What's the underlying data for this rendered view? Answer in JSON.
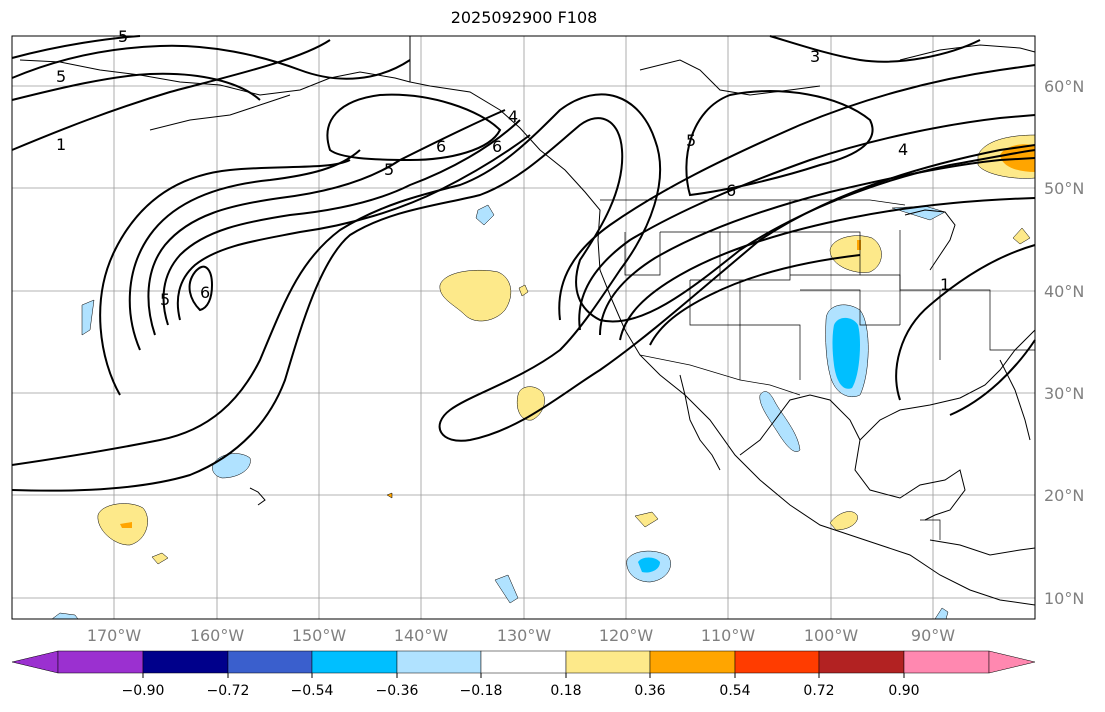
{
  "title": "2025092900 F108",
  "map": {
    "lat_labels": [
      "60°N",
      "50°N",
      "40°N",
      "30°N",
      "20°N",
      "10°N"
    ],
    "lon_labels": [
      "170°W",
      "160°W",
      "150°W",
      "140°W",
      "130°W",
      "120°W",
      "110°W",
      "100°W",
      "90°W"
    ],
    "contour_labels": [
      "5",
      "1",
      "5",
      "6",
      "5",
      "6",
      "4",
      "6",
      "5",
      "3",
      "4",
      "1",
      "6",
      "5"
    ],
    "grid": true
  },
  "colorbar": {
    "ticks": [
      "−0.90",
      "−0.72",
      "−0.54",
      "−0.36",
      "−0.18",
      "0.18",
      "0.36",
      "0.54",
      "0.72",
      "0.90"
    ],
    "colors": [
      "#9b30d0",
      "#00008b",
      "#3a5fcd",
      "#00bfff",
      "#b0e2ff",
      "#ffffff",
      "#fde98a",
      "#ffa500",
      "#ff3c00",
      "#b22222",
      "#ff88b0"
    ],
    "extend": "both"
  },
  "colors": {
    "positive_light": "#fde98a",
    "positive_mid": "#ffa500",
    "negative_light": "#b0e2ff",
    "negative_mid": "#00bfff"
  }
}
